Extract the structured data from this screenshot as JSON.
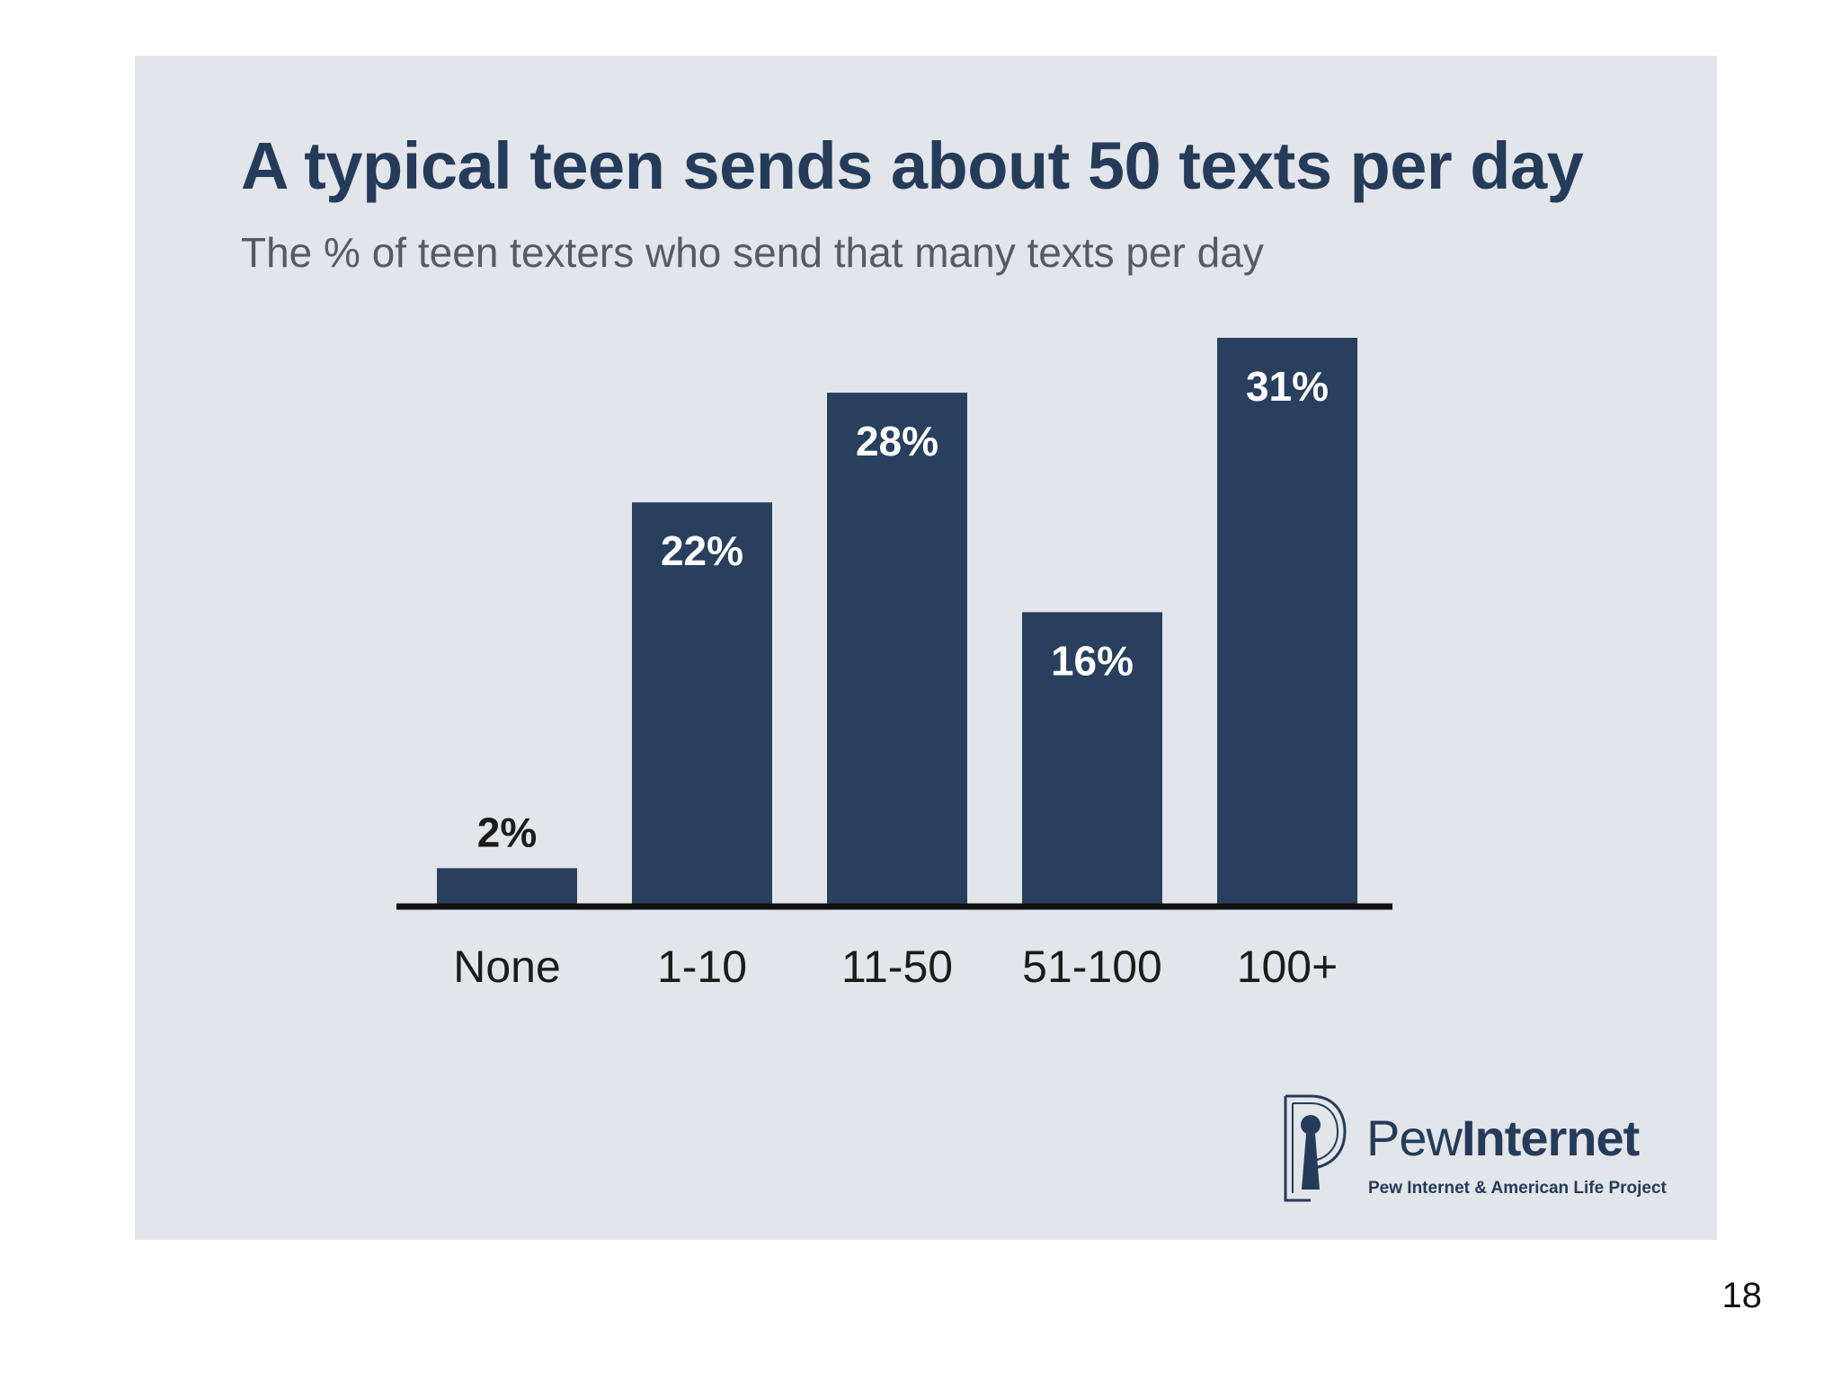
{
  "chart_data": {
    "type": "bar",
    "title": "A typical teen sends about 50 texts per day",
    "subtitle": "The % of teen texters who send that many texts per day",
    "categories": [
      "None",
      "1-10",
      "11-50",
      "51-100",
      "100+"
    ],
    "values": [
      2,
      22,
      28,
      16,
      31
    ],
    "value_labels": [
      "2%",
      "22%",
      "28%",
      "16%",
      "31%"
    ],
    "xlabel": "",
    "ylabel": "",
    "ylim": [
      0,
      31
    ],
    "grid": false,
    "bar_color": "#283f5e",
    "baseline_color": "#111111"
  },
  "logo": {
    "name_light": "Pew",
    "name_bold": "Internet",
    "subtitle": "Pew Internet & American Life Project",
    "icon": "pew-keyhole-icon"
  },
  "page": {
    "number": "18"
  },
  "colors": {
    "panel_bg": "#e2e5e9",
    "title": "#253b5a",
    "subtitle": "#555b63"
  }
}
